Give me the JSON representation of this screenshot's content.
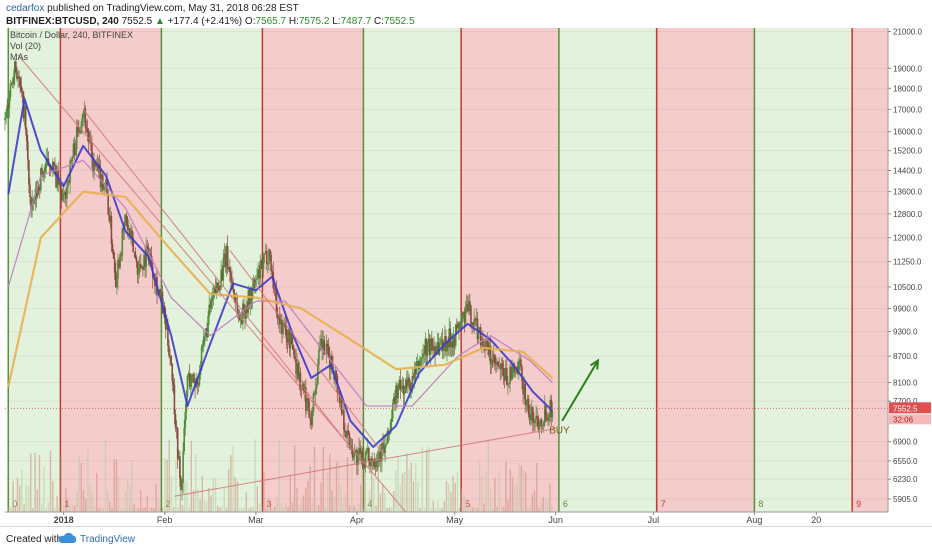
{
  "header": {
    "author": "cedarfox",
    "published": "published on TradingView.com, May 31, 2018 06:28 EST",
    "symbol": "BITFINEX:BTCUSD, 240",
    "last": "7552.5",
    "change_arrow": "▲",
    "change": "+177.4 (+2.41%)",
    "o_label": "O:",
    "o": "7565.7",
    "h_label": "H:",
    "h": "7575.2",
    "l_label": "L:",
    "l": "7487.7",
    "c_label": "C:",
    "c": "7552.5"
  },
  "legend": {
    "title": "Bitcoin / Dollar, 240, BITFINEX",
    "vol": "Vol (20)",
    "mas": "MAs"
  },
  "footer": {
    "created_with": "Created with",
    "brand": "TradingView",
    "logo_icon": "tradingview-cloud-icon"
  },
  "colors": {
    "green_zone": "#e3f2dc",
    "red_zone": "#f5cccc",
    "green_line": "#5a8f3c",
    "red_line": "#c0392b",
    "ma_fast": "#3c3cc8",
    "ma_mid": "#c080c0",
    "ma_slow": "#e8b050",
    "trend": "#d47878",
    "arrow": "#2f7d1e",
    "price_tag": "#e05050"
  },
  "chart_data": {
    "type": "candlestick",
    "symbol": "BITFINEX:BTCUSD",
    "timeframe": "240",
    "y_scale": "log",
    "ylim": [
      5700,
      21200
    ],
    "x_start": "2017-12-14",
    "x_end": "2018-09-11",
    "x_labels": [
      {
        "label": "2018",
        "date": "2018-01-01"
      },
      {
        "label": "Feb",
        "date": "2018-02-01"
      },
      {
        "label": "Mar",
        "date": "2018-03-01"
      },
      {
        "label": "Apr",
        "date": "2018-04-01"
      },
      {
        "label": "May",
        "date": "2018-05-01"
      },
      {
        "label": "Jun",
        "date": "2018-06-01"
      },
      {
        "label": "Jul",
        "date": "2018-07-01"
      },
      {
        "label": "Aug",
        "date": "2018-08-01"
      },
      {
        "label": "20",
        "date": "2018-08-20"
      }
    ],
    "y_ticks": [
      5905.0,
      6230.0,
      6550.0,
      6900.0,
      7700.0,
      8100.0,
      8700.0,
      9300.0,
      9900.0,
      10500.0,
      11250.0,
      12000.0,
      12800.0,
      13600.0,
      14400.0,
      15200.0,
      16000.0,
      17000.0,
      18000.0,
      19000.0,
      21000.0
    ],
    "last_price": "7552.5",
    "countdown": "32:06",
    "zones": [
      {
        "start": "2017-12-15",
        "end": "2017-12-31",
        "color": "green",
        "label": "0"
      },
      {
        "start": "2017-12-31",
        "end": "2018-01-31",
        "color": "red",
        "label": "1"
      },
      {
        "start": "2018-01-31",
        "end": "2018-03-03",
        "color": "green",
        "label": "2"
      },
      {
        "start": "2018-03-03",
        "end": "2018-04-03",
        "color": "red",
        "label": "3"
      },
      {
        "start": "2018-04-03",
        "end": "2018-05-03",
        "color": "green",
        "label": "4"
      },
      {
        "start": "2018-05-03",
        "end": "2018-06-02",
        "color": "red",
        "label": "5"
      },
      {
        "start": "2018-06-02",
        "end": "2018-07-02",
        "color": "green",
        "label": "6"
      },
      {
        "start": "2018-07-02",
        "end": "2018-08-01",
        "color": "red",
        "label": "7"
      },
      {
        "start": "2018-08-01",
        "end": "2018-08-31",
        "color": "green",
        "label": "8"
      },
      {
        "start": "2018-08-31",
        "end": "2018-09-11",
        "color": "red",
        "label": "9"
      }
    ],
    "price_path": [
      {
        "date": "2017-12-14",
        "price": 16500
      },
      {
        "date": "2017-12-17",
        "price": 19400
      },
      {
        "date": "2017-12-20",
        "price": 16800
      },
      {
        "date": "2017-12-22",
        "price": 12800
      },
      {
        "date": "2017-12-25",
        "price": 14200
      },
      {
        "date": "2017-12-28",
        "price": 14800
      },
      {
        "date": "2018-01-01",
        "price": 13200
      },
      {
        "date": "2018-01-04",
        "price": 15200
      },
      {
        "date": "2018-01-07",
        "price": 17100
      },
      {
        "date": "2018-01-10",
        "price": 14600
      },
      {
        "date": "2018-01-14",
        "price": 13800
      },
      {
        "date": "2018-01-17",
        "price": 10800
      },
      {
        "date": "2018-01-20",
        "price": 12600
      },
      {
        "date": "2018-01-24",
        "price": 11000
      },
      {
        "date": "2018-01-27",
        "price": 11600
      },
      {
        "date": "2018-01-31",
        "price": 10100
      },
      {
        "date": "2018-02-03",
        "price": 8600
      },
      {
        "date": "2018-02-06",
        "price": 6000
      },
      {
        "date": "2018-02-08",
        "price": 8200
      },
      {
        "date": "2018-02-11",
        "price": 8100
      },
      {
        "date": "2018-02-15",
        "price": 9900
      },
      {
        "date": "2018-02-20",
        "price": 11400
      },
      {
        "date": "2018-02-24",
        "price": 9600
      },
      {
        "date": "2018-02-28",
        "price": 10400
      },
      {
        "date": "2018-03-05",
        "price": 11600
      },
      {
        "date": "2018-03-08",
        "price": 9600
      },
      {
        "date": "2018-03-12",
        "price": 9000
      },
      {
        "date": "2018-03-15",
        "price": 8000
      },
      {
        "date": "2018-03-18",
        "price": 7400
      },
      {
        "date": "2018-03-21",
        "price": 9000
      },
      {
        "date": "2018-03-25",
        "price": 8400
      },
      {
        "date": "2018-03-29",
        "price": 7000
      },
      {
        "date": "2018-04-01",
        "price": 6600
      },
      {
        "date": "2018-04-06",
        "price": 6600
      },
      {
        "date": "2018-04-10",
        "price": 6800
      },
      {
        "date": "2018-04-13",
        "price": 7900
      },
      {
        "date": "2018-04-18",
        "price": 8100
      },
      {
        "date": "2018-04-22",
        "price": 8900
      },
      {
        "date": "2018-04-27",
        "price": 9000
      },
      {
        "date": "2018-05-01",
        "price": 9200
      },
      {
        "date": "2018-05-05",
        "price": 9900
      },
      {
        "date": "2018-05-09",
        "price": 9200
      },
      {
        "date": "2018-05-13",
        "price": 8500
      },
      {
        "date": "2018-05-17",
        "price": 8200
      },
      {
        "date": "2018-05-21",
        "price": 8400
      },
      {
        "date": "2018-05-24",
        "price": 7400
      },
      {
        "date": "2018-05-27",
        "price": 7300
      },
      {
        "date": "2018-05-29",
        "price": 7500
      },
      {
        "date": "2018-05-31",
        "price": 7552
      }
    ],
    "series": [
      {
        "role": "ma_fast",
        "points": [
          {
            "date": "2017-12-15",
            "price": 13500
          },
          {
            "date": "2017-12-20",
            "price": 17500
          },
          {
            "date": "2017-12-25",
            "price": 15200
          },
          {
            "date": "2018-01-01",
            "price": 13800
          },
          {
            "date": "2018-01-07",
            "price": 15400
          },
          {
            "date": "2018-01-14",
            "price": 14200
          },
          {
            "date": "2018-01-20",
            "price": 12200
          },
          {
            "date": "2018-01-27",
            "price": 11400
          },
          {
            "date": "2018-02-03",
            "price": 9200
          },
          {
            "date": "2018-02-08",
            "price": 7600
          },
          {
            "date": "2018-02-15",
            "price": 9000
          },
          {
            "date": "2018-02-22",
            "price": 10600
          },
          {
            "date": "2018-03-01",
            "price": 10400
          },
          {
            "date": "2018-03-06",
            "price": 10800
          },
          {
            "date": "2018-03-12",
            "price": 9300
          },
          {
            "date": "2018-03-18",
            "price": 8200
          },
          {
            "date": "2018-03-24",
            "price": 8500
          },
          {
            "date": "2018-03-30",
            "price": 7300
          },
          {
            "date": "2018-04-06",
            "price": 6800
          },
          {
            "date": "2018-04-13",
            "price": 7200
          },
          {
            "date": "2018-04-20",
            "price": 8300
          },
          {
            "date": "2018-04-28",
            "price": 9000
          },
          {
            "date": "2018-05-05",
            "price": 9500
          },
          {
            "date": "2018-05-12",
            "price": 9100
          },
          {
            "date": "2018-05-19",
            "price": 8500
          },
          {
            "date": "2018-05-25",
            "price": 7900
          },
          {
            "date": "2018-05-31",
            "price": 7500
          }
        ]
      },
      {
        "role": "ma_mid",
        "points": [
          {
            "date": "2017-12-15",
            "price": 10500
          },
          {
            "date": "2017-12-25",
            "price": 14200
          },
          {
            "date": "2018-01-07",
            "price": 14800
          },
          {
            "date": "2018-01-20",
            "price": 13000
          },
          {
            "date": "2018-02-03",
            "price": 10200
          },
          {
            "date": "2018-02-15",
            "price": 9200
          },
          {
            "date": "2018-03-01",
            "price": 10100
          },
          {
            "date": "2018-03-10",
            "price": 10100
          },
          {
            "date": "2018-03-22",
            "price": 8800
          },
          {
            "date": "2018-04-04",
            "price": 7600
          },
          {
            "date": "2018-04-18",
            "price": 7600
          },
          {
            "date": "2018-05-02",
            "price": 8700
          },
          {
            "date": "2018-05-12",
            "price": 9200
          },
          {
            "date": "2018-05-24",
            "price": 8600
          },
          {
            "date": "2018-05-31",
            "price": 8100
          }
        ]
      },
      {
        "role": "ma_slow",
        "points": [
          {
            "date": "2017-12-15",
            "price": 8000
          },
          {
            "date": "2017-12-25",
            "price": 12000
          },
          {
            "date": "2018-01-07",
            "price": 13600
          },
          {
            "date": "2018-01-20",
            "price": 13400
          },
          {
            "date": "2018-02-03",
            "price": 11600
          },
          {
            "date": "2018-02-15",
            "price": 10300
          },
          {
            "date": "2018-03-01",
            "price": 10200
          },
          {
            "date": "2018-03-15",
            "price": 9900
          },
          {
            "date": "2018-03-30",
            "price": 9100
          },
          {
            "date": "2018-04-13",
            "price": 8400
          },
          {
            "date": "2018-04-28",
            "price": 8500
          },
          {
            "date": "2018-05-10",
            "price": 8900
          },
          {
            "date": "2018-05-22",
            "price": 8800
          },
          {
            "date": "2018-05-31",
            "price": 8200
          }
        ]
      }
    ],
    "trendlines": [
      {
        "from": {
          "date": "2017-12-18",
          "price": 19700
        },
        "to": {
          "date": "2018-04-16",
          "price": 5700
        }
      },
      {
        "from": {
          "date": "2018-01-07",
          "price": 17000
        },
        "to": {
          "date": "2018-03-30",
          "price": 6800
        }
      },
      {
        "from": {
          "date": "2018-02-21",
          "price": 11600
        },
        "to": {
          "date": "2018-04-10",
          "price": 6600
        }
      },
      {
        "from": {
          "date": "2018-02-04",
          "price": 5950
        },
        "to": {
          "date": "2018-06-01",
          "price": 7150
        }
      }
    ],
    "annotations": [
      {
        "type": "text",
        "text": "BUY",
        "date": "2018-05-30",
        "price": 7050
      },
      {
        "type": "arrow",
        "from": {
          "date": "2018-06-03",
          "price": 7300
        },
        "to": {
          "date": "2018-06-14",
          "price": 8600
        }
      }
    ]
  }
}
